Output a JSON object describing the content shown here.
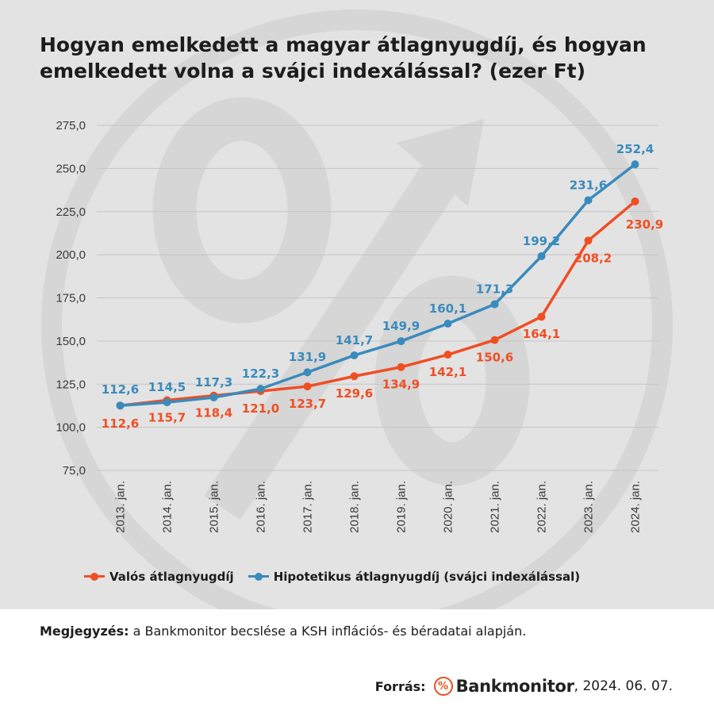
{
  "title": "Hogyan emelkedett a magyar átlagnyugdíj, és hogyan emelkedett volna a svájci indexálással? (ezer Ft)",
  "colors": {
    "panel_bg": "#e3e3e3",
    "watermark": "#d6d6d6",
    "grid": "#c4c4c4",
    "real": "#f04e23",
    "hypothetical": "#3a8bbd"
  },
  "note": {
    "label": "Megjegyzés:",
    "text": "a Bankmonitor becslése a KSH inflációs- és béradatai alapján."
  },
  "source": {
    "label": "Forrás:",
    "logo_icon": "percent-circle-icon",
    "logo_symbol": "%",
    "brand": "Bankmonitor",
    "date": ", 2024. 06. 07."
  },
  "chart_data": {
    "type": "line",
    "title": "Hogyan emelkedett a magyar átlagnyugdíj, és hogyan emelkedett volna a svájci indexálással? (ezer Ft)",
    "categories": [
      "2013. jan.",
      "2014. jan.",
      "2015. jan.",
      "2016. jan.",
      "2017. jan.",
      "2018. jan.",
      "2019. jan.",
      "2020. jan.",
      "2021. jan.",
      "2022. jan.",
      "2023. jan.",
      "2024. jan."
    ],
    "ylim": [
      75,
      275
    ],
    "yticks": [
      "75,0",
      "100,0",
      "125,0",
      "150,0",
      "175,0",
      "200,0",
      "225,0",
      "250,0",
      "275,0"
    ],
    "grid": true,
    "legend_position": "bottom",
    "series": [
      {
        "name": "Valós átlagnyugdíj",
        "color": "#f04e23",
        "values": [
          112.6,
          115.7,
          118.4,
          121.0,
          123.7,
          129.6,
          134.9,
          142.1,
          150.6,
          164.1,
          208.2,
          230.9
        ],
        "labels": [
          "112,6",
          "115,7",
          "118,4",
          "121,0",
          "123,7",
          "129,6",
          "134,9",
          "142,1",
          "150,6",
          "164,1",
          "208,2",
          "230,9"
        ]
      },
      {
        "name": "Hipotetikus átlagnyugdíj (svájci indexálással)",
        "color": "#3a8bbd",
        "values": [
          112.6,
          114.5,
          117.3,
          122.3,
          131.9,
          141.7,
          149.9,
          160.1,
          171.3,
          199.2,
          231.6,
          252.4
        ],
        "labels": [
          "112,6",
          "114,5",
          "117,3",
          "122,3",
          "131,9",
          "141,7",
          "149,9",
          "160,1",
          "171,3",
          "199,2",
          "231,6",
          "252,4"
        ]
      }
    ]
  }
}
